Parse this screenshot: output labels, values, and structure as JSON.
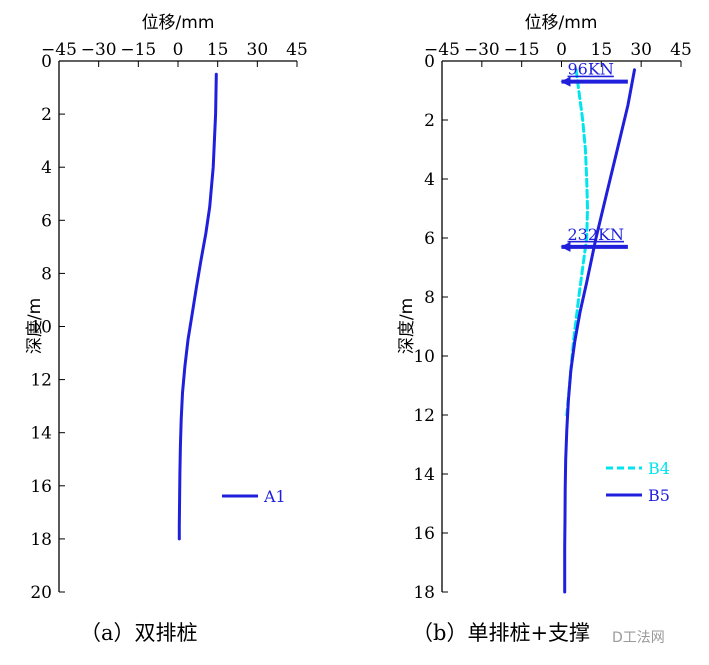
{
  "chart_data": [
    {
      "type": "line",
      "panel": "a",
      "caption": "（a）双排桩",
      "xlabel": "位移/mm",
      "ylabel": "深度/m",
      "xlim": [
        -45,
        45
      ],
      "ylim": [
        0,
        20
      ],
      "y_inverted": true,
      "x_axis_position": "top",
      "xticks": [
        "−45",
        "−30",
        "−15",
        "0",
        "15",
        "30",
        "45"
      ],
      "yticks": [
        "0",
        "2",
        "4",
        "6",
        "8",
        "10",
        "12",
        "14",
        "16",
        "18",
        "20"
      ],
      "legend_position": "bottom-right",
      "series": [
        {
          "name": "A1",
          "color": "#1f1fdc",
          "style": "solid",
          "x": [
            14.5,
            14.2,
            13.3,
            12.0,
            10.5,
            8.7,
            7.0,
            5.4,
            3.8,
            2.6,
            1.7,
            1.2,
            0.9,
            0.7,
            0.6,
            0.5,
            0.5
          ],
          "y": [
            0.5,
            2.0,
            4.0,
            5.5,
            6.5,
            7.5,
            8.5,
            9.5,
            10.5,
            11.5,
            12.5,
            13.5,
            14.5,
            15.5,
            16.5,
            17.5,
            18.0
          ]
        }
      ]
    },
    {
      "type": "line",
      "panel": "b",
      "caption": "（b）单排桩+支撑",
      "xlabel": "位移/mm",
      "ylabel": "深度/m",
      "xlim": [
        -45,
        45
      ],
      "ylim": [
        0,
        18
      ],
      "y_inverted": true,
      "x_axis_position": "top",
      "xticks": [
        "−45",
        "−30",
        "−15",
        "0",
        "15",
        "30",
        "45"
      ],
      "yticks": [
        "0",
        "2",
        "4",
        "6",
        "8",
        "10",
        "12",
        "14",
        "16",
        "18"
      ],
      "legend_position": "bottom-right",
      "series": [
        {
          "name": "B4",
          "color": "#00e5ee",
          "style": "dashed",
          "x": [
            5.5,
            6.5,
            8.0,
            9.0,
            9.5,
            9.8,
            9.5,
            8.0,
            6.5,
            4.5,
            3.0,
            2.0
          ],
          "y": [
            0.3,
            1.0,
            2.0,
            3.0,
            4.0,
            5.0,
            6.0,
            7.0,
            8.0,
            9.5,
            11.0,
            12.0
          ]
        },
        {
          "name": "B5",
          "color": "#1f1fdc",
          "style": "solid",
          "x": [
            27.5,
            25.0,
            21.0,
            17.0,
            13.0,
            9.5,
            7.0,
            5.0,
            3.5,
            2.6,
            2.0,
            1.6,
            1.4,
            1.3,
            1.2,
            1.2
          ],
          "y": [
            0.3,
            1.5,
            3.0,
            4.5,
            6.0,
            7.5,
            8.5,
            9.5,
            10.5,
            11.5,
            12.5,
            13.5,
            14.5,
            15.5,
            16.5,
            18.0
          ]
        }
      ],
      "annotations": [
        {
          "text": "96KN",
          "color": "#1f1fdc",
          "arrow_depth": 0.7,
          "arrow_from_x": 25,
          "arrow_to_x": 0
        },
        {
          "text": "232KN",
          "color": "#1f1fdc",
          "arrow_depth": 6.3,
          "arrow_from_x": 25,
          "arrow_to_x": 0
        }
      ]
    }
  ],
  "watermark": "D工法网"
}
